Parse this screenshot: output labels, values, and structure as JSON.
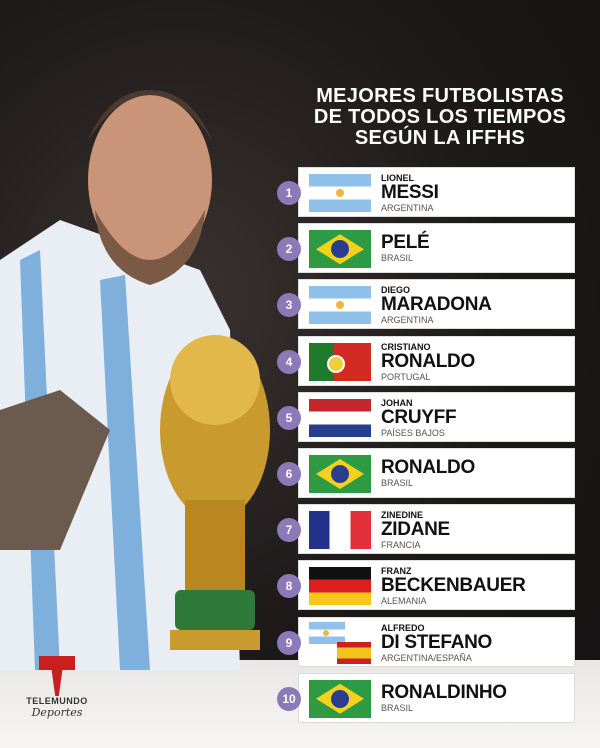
{
  "title": [
    "MEJORES FUTBOLISTAS",
    "DE TODOS LOS TIEMPOS",
    "SEGÚN LA IFFHS"
  ],
  "players": [
    {
      "rank": "1",
      "first": "LIONEL",
      "last": "MESSI",
      "country": "ARGENTINA",
      "flag": "argentina"
    },
    {
      "rank": "2",
      "first": "",
      "last": "PELÉ",
      "country": "BRASIL",
      "flag": "brazil"
    },
    {
      "rank": "3",
      "first": "DIEGO",
      "last": "MARADONA",
      "country": "ARGENTINA",
      "flag": "argentina"
    },
    {
      "rank": "4",
      "first": "CRISTIANO",
      "last": "RONALDO",
      "country": "PORTUGAL",
      "flag": "portugal"
    },
    {
      "rank": "5",
      "first": "JOHAN",
      "last": "CRUYFF",
      "country": "PAÍSES BAJOS",
      "flag": "netherlands"
    },
    {
      "rank": "6",
      "first": "",
      "last": "RONALDO",
      "country": "BRASIL",
      "flag": "brazil"
    },
    {
      "rank": "7",
      "first": "ZINEDINE",
      "last": "ZIDANE",
      "country": "FRANCIA",
      "flag": "france"
    },
    {
      "rank": "8",
      "first": "FRANZ",
      "last": "BECKENBAUER",
      "country": "ALEMANIA",
      "flag": "germany"
    },
    {
      "rank": "9",
      "first": "ALFREDO",
      "last": "DI STEFANO",
      "country": "ARGENTINA/ESPAÑA",
      "flag": "argentina-spain"
    },
    {
      "rank": "10",
      "first": "",
      "last": "RONALDINHO",
      "country": "BRASIL",
      "flag": "brazil"
    }
  ],
  "logo": {
    "line1": "TELEMUNDO",
    "line2": "Deportes"
  },
  "colors": {
    "badge": "#8c79b8",
    "brand_red": "#c8201f"
  }
}
